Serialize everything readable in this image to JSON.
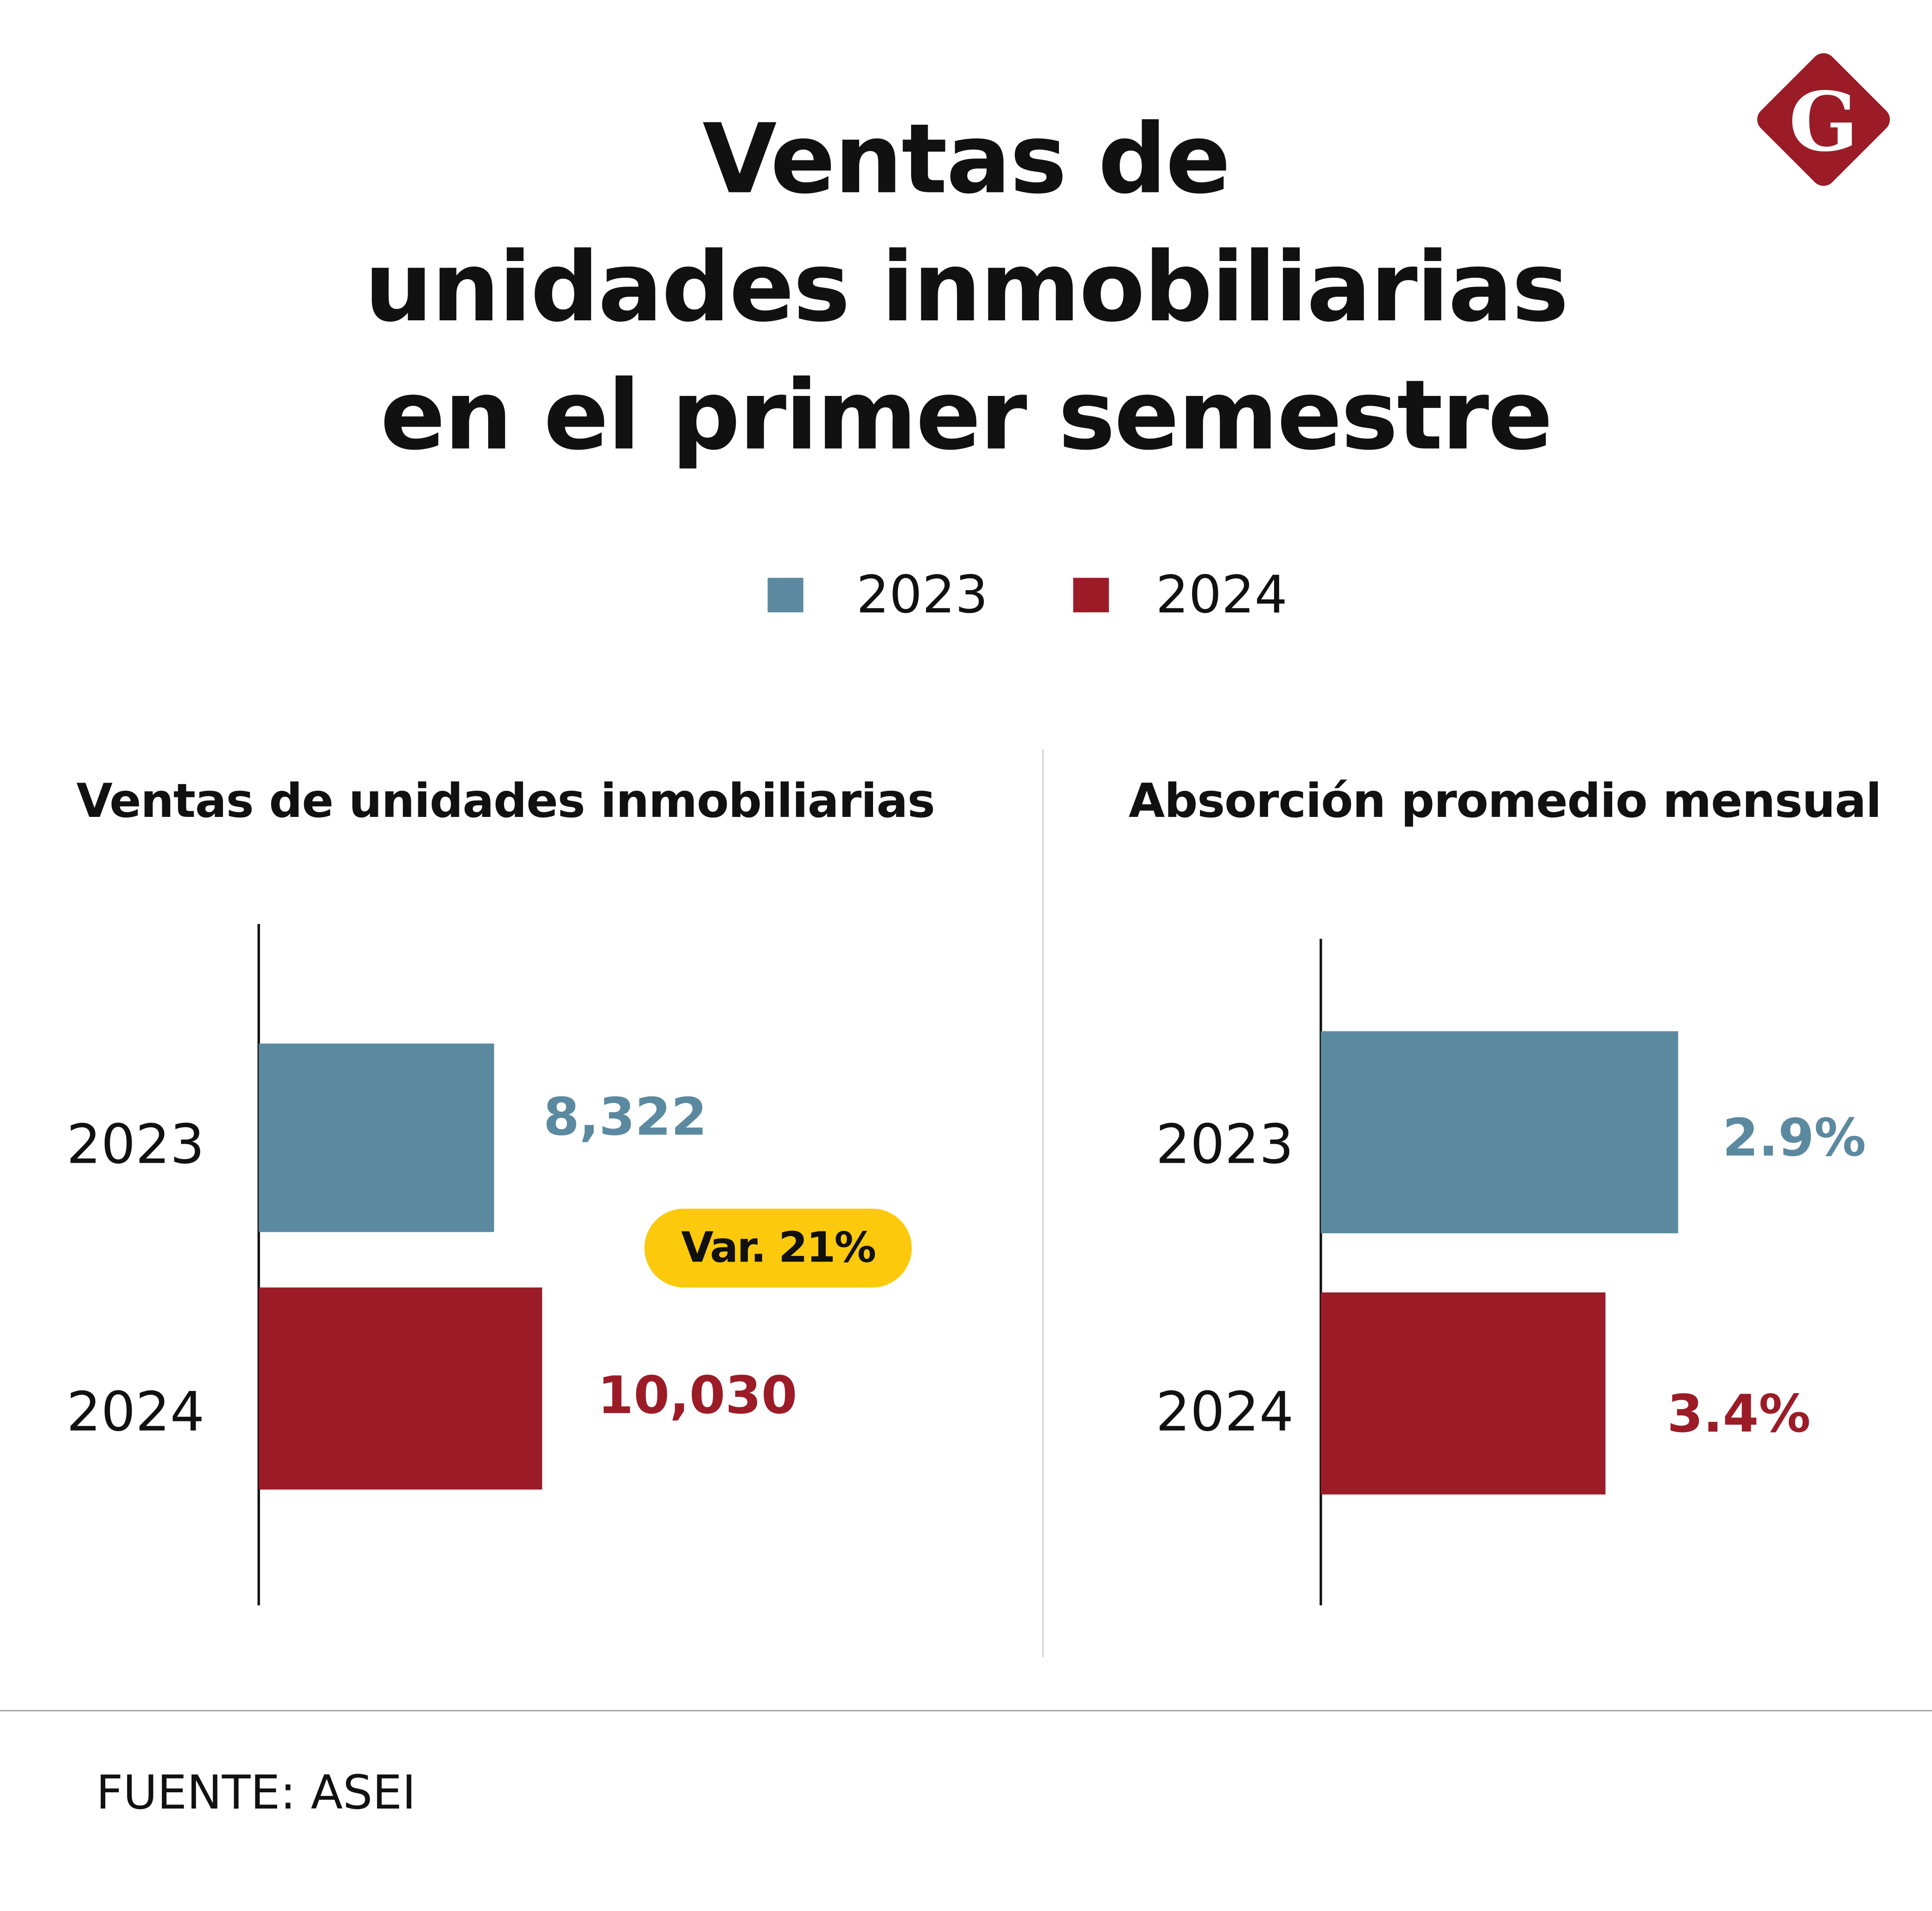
{
  "title": [
    "Ventas de",
    "unidades inmobiliarias",
    "en el primer semestre"
  ],
  "legend": [
    {
      "label": "2023",
      "color": "#5b89a0"
    },
    {
      "label": "2024",
      "color": "#9b1c27"
    }
  ],
  "colors": {
    "2023": "#5b89a0",
    "2024": "#9b1c27",
    "highlight": "#fcc90d"
  },
  "logo": {
    "letter": "G",
    "color": "#9b1c27"
  },
  "chart_data": [
    {
      "type": "bar",
      "orientation": "horizontal",
      "title": "Ventas de unidades inmobiliarias",
      "categories": [
        "2023",
        "2024"
      ],
      "values": [
        8322,
        10030
      ],
      "value_labels": [
        "8,322",
        "10,030"
      ],
      "annotation": "Var. 21%"
    },
    {
      "type": "bar",
      "orientation": "horizontal",
      "title": "Absorción promedio mensual",
      "categories": [
        "2023",
        "2024"
      ],
      "values": [
        2.9,
        3.4
      ],
      "value_labels": [
        "2.9%",
        "3.4%"
      ]
    }
  ],
  "source": "FUENTE: ASEI"
}
